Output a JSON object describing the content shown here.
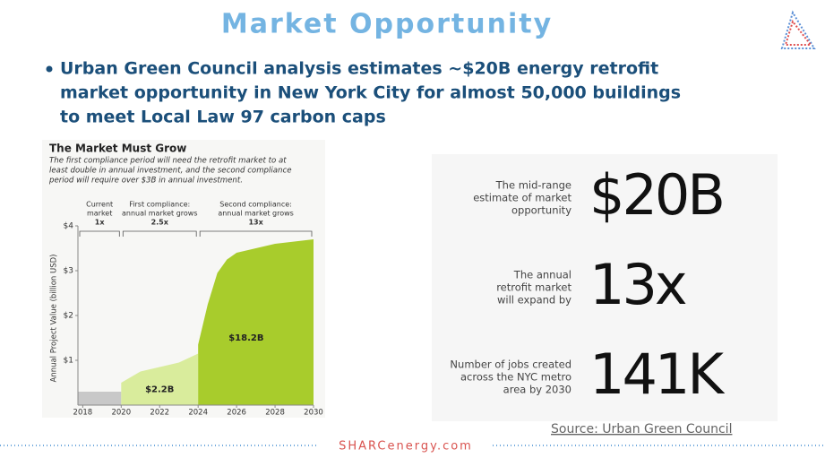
{
  "title": "Market Opportunity",
  "bullet": [
    "Urban Green Council analysis estimates ~$20B energy retrofit",
    "market opportunity in New York City for almost 50,000 buildings",
    "to meet Local Law 97 carbon caps"
  ],
  "chart": {
    "type": "area",
    "title": "The Market Must Grow",
    "subtitle": [
      "The first compliance period will need the retrofit market to at",
      "least double in annual investment, and the second compliance",
      "period will require over $3B in annual investment."
    ],
    "y_label": "Annual Project Value (billion USD)",
    "phases": [
      {
        "label": [
          "Current",
          "market"
        ],
        "factor": "1x",
        "x": [
          2017.75,
          2020
        ]
      },
      {
        "label": [
          "First compliance:",
          "annual market grows"
        ],
        "factor": "2.5x",
        "x": [
          2020,
          2024
        ]
      },
      {
        "label": [
          "Second compliance:",
          "annual market grows"
        ],
        "factor": "13x",
        "x": [
          2024,
          2030
        ]
      }
    ],
    "xlim": [
      2017.75,
      2030
    ],
    "xticks": [
      2018,
      2020,
      2022,
      2024,
      2026,
      2028,
      2030
    ],
    "ylim": [
      0,
      4
    ],
    "yticks": [
      {
        "value": 1,
        "label": "$1"
      },
      {
        "value": 2,
        "label": "$2"
      },
      {
        "value": 3,
        "label": "$3"
      },
      {
        "value": 4,
        "label": "$4"
      }
    ],
    "areas": [
      {
        "color": "#c8c8c8",
        "x": [
          2017.75,
          2020
        ],
        "values": [
          0.3,
          0.3
        ]
      },
      {
        "color": "#d9ec9c",
        "x": [
          2020,
          2021,
          2022,
          2023,
          2024
        ],
        "values": [
          0.5,
          0.75,
          0.85,
          0.95,
          1.15
        ],
        "label": "$2.2B",
        "label_at": [
          2022,
          0.35
        ]
      },
      {
        "color": "#a8cc2c",
        "x": [
          2024,
          2024.5,
          2025,
          2025.5,
          2026,
          2027,
          2028,
          2029,
          2030
        ],
        "values": [
          1.35,
          2.25,
          2.95,
          3.25,
          3.4,
          3.5,
          3.6,
          3.65,
          3.7
        ],
        "label": "$18.2B",
        "label_at": [
          2026.5,
          1.5
        ]
      }
    ]
  },
  "stats": [
    {
      "label": [
        "The mid-range",
        "estimate of market",
        "opportunity"
      ],
      "value": "$20B"
    },
    {
      "label": [
        "The annual",
        "retrofit market",
        "will expand by"
      ],
      "value": "13x"
    },
    {
      "label": [
        "Number of jobs created",
        "across the NYC metro",
        "area by 2030"
      ],
      "value": "141K"
    }
  ],
  "source": "Source: Urban Green Council",
  "footer": "SHARCenergy.com"
}
